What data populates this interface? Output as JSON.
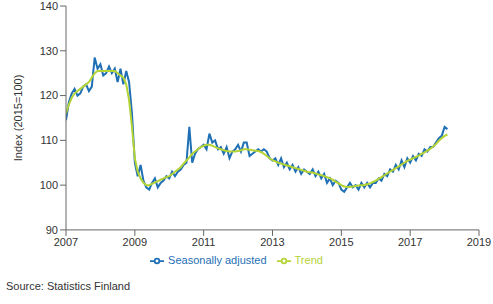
{
  "chart_data": {
    "type": "line",
    "y_label": "Index (2015=100)",
    "source": "Source: Statistics Finland",
    "x": [
      2007,
      2007.083,
      2007.167,
      2007.25,
      2007.333,
      2007.417,
      2007.5,
      2007.583,
      2007.667,
      2007.75,
      2007.833,
      2007.917,
      2008,
      2008.083,
      2008.167,
      2008.25,
      2008.333,
      2008.417,
      2008.5,
      2008.583,
      2008.667,
      2008.75,
      2008.833,
      2008.917,
      2009,
      2009.083,
      2009.167,
      2009.25,
      2009.333,
      2009.417,
      2009.5,
      2009.583,
      2009.667,
      2009.75,
      2009.833,
      2009.917,
      2010,
      2010.083,
      2010.167,
      2010.25,
      2010.333,
      2010.417,
      2010.5,
      2010.583,
      2010.667,
      2010.75,
      2010.833,
      2010.917,
      2011,
      2011.083,
      2011.167,
      2011.25,
      2011.333,
      2011.417,
      2011.5,
      2011.583,
      2011.667,
      2011.75,
      2011.833,
      2011.917,
      2012,
      2012.083,
      2012.167,
      2012.25,
      2012.333,
      2012.417,
      2012.5,
      2012.583,
      2012.667,
      2012.75,
      2012.833,
      2012.917,
      2013,
      2013.083,
      2013.167,
      2013.25,
      2013.333,
      2013.417,
      2013.5,
      2013.583,
      2013.667,
      2013.75,
      2013.833,
      2013.917,
      2014,
      2014.083,
      2014.167,
      2014.25,
      2014.333,
      2014.417,
      2014.5,
      2014.583,
      2014.667,
      2014.75,
      2014.833,
      2014.917,
      2015,
      2015.083,
      2015.167,
      2015.25,
      2015.333,
      2015.417,
      2015.5,
      2015.583,
      2015.667,
      2015.75,
      2015.833,
      2015.917,
      2016,
      2016.083,
      2016.167,
      2016.25,
      2016.333,
      2016.417,
      2016.5,
      2016.583,
      2016.667,
      2016.75,
      2016.833,
      2016.917,
      2017,
      2017.083,
      2017.167,
      2017.25,
      2017.333,
      2017.417,
      2017.5,
      2017.583,
      2017.667,
      2017.75,
      2017.833,
      2017.917,
      2018,
      2018.083
    ],
    "series": [
      {
        "name": "Seasonally adjusted",
        "color": "#1f6fb5",
        "values": [
          114.5,
          118.5,
          120.5,
          121.5,
          120,
          120.5,
          122,
          122.5,
          121,
          122,
          128.5,
          126,
          127,
          124.5,
          125,
          126.5,
          125,
          126,
          123,
          126,
          122.5,
          125.5,
          123,
          116,
          105,
          102,
          104.5,
          101,
          99.5,
          99,
          100.5,
          101.5,
          99.5,
          100.5,
          101,
          102,
          101.5,
          103,
          102,
          103,
          103.5,
          104.5,
          105,
          113,
          105,
          107,
          108,
          108.5,
          109,
          108,
          111.5,
          109.5,
          110,
          108,
          108.5,
          107,
          108.5,
          106,
          107.5,
          108,
          109,
          107.5,
          109.5,
          109.5,
          106.5,
          107,
          107.5,
          108,
          107.5,
          108,
          107.5,
          106,
          105.5,
          106,
          104.5,
          106,
          104,
          105,
          103.5,
          104.5,
          103,
          104,
          102.5,
          103.5,
          103,
          102.5,
          103.5,
          102,
          103,
          101.5,
          102.5,
          100.5,
          101.5,
          100,
          101,
          100.5,
          99,
          98.5,
          99.5,
          100.5,
          99.5,
          100,
          99,
          100.5,
          99.5,
          100.5,
          99.5,
          100.5,
          100.5,
          101.5,
          101,
          102.5,
          102,
          103.5,
          103,
          104.5,
          103.5,
          105.5,
          104,
          106,
          105,
          106.5,
          105.5,
          107,
          106.5,
          108,
          107.5,
          108.5,
          108.5,
          109.5,
          110.5,
          111,
          113,
          112.5
        ]
      },
      {
        "name": "Trend",
        "color": "#b4d334",
        "values": [
          116,
          118,
          119.5,
          120.5,
          121,
          121.5,
          122,
          122.5,
          123,
          124,
          125,
          125.5,
          125.5,
          125.5,
          125.5,
          125.5,
          125.5,
          125.5,
          125,
          124.5,
          124,
          122.5,
          119,
          113,
          106,
          103,
          101.5,
          100.5,
          100,
          100,
          100.3,
          100.6,
          100.9,
          101.2,
          101.5,
          101.8,
          102,
          102.5,
          103,
          103.5,
          104,
          104.8,
          105.5,
          106.2,
          107,
          107.5,
          108,
          108.5,
          108.8,
          109,
          109,
          108.8,
          108.5,
          108.2,
          108,
          107.8,
          107.6,
          107.5,
          107.5,
          107.5,
          107.6,
          107.8,
          108,
          108,
          107.9,
          107.8,
          107.7,
          107.6,
          107.4,
          107,
          106.5,
          106,
          105.6,
          105.3,
          105,
          104.8,
          104.6,
          104.4,
          104.2,
          104,
          103.8,
          103.6,
          103.4,
          103.2,
          103,
          102.9,
          102.8,
          102.6,
          102.4,
          102.2,
          102,
          101.8,
          101.5,
          101.2,
          100.8,
          100.4,
          100,
          99.7,
          99.6,
          99.6,
          99.7,
          99.8,
          99.9,
          100,
          100,
          100.2,
          100.4,
          100.7,
          101,
          101.4,
          101.8,
          102.2,
          102.6,
          103,
          103.4,
          103.8,
          104.2,
          104.6,
          105,
          105.4,
          105.7,
          106,
          106.3,
          106.6,
          107,
          107.3,
          107.7,
          108.1,
          108.6,
          109.2,
          109.9,
          110.5,
          111,
          111.3
        ]
      }
    ],
    "xlim": [
      2007,
      2019
    ],
    "xticks": [
      2007,
      2009,
      2011,
      2013,
      2015,
      2017,
      2019
    ],
    "ylim": [
      90,
      140
    ],
    "yticks": [
      90,
      100,
      110,
      120,
      130,
      140
    ],
    "grid": false,
    "legend": "bottom"
  }
}
